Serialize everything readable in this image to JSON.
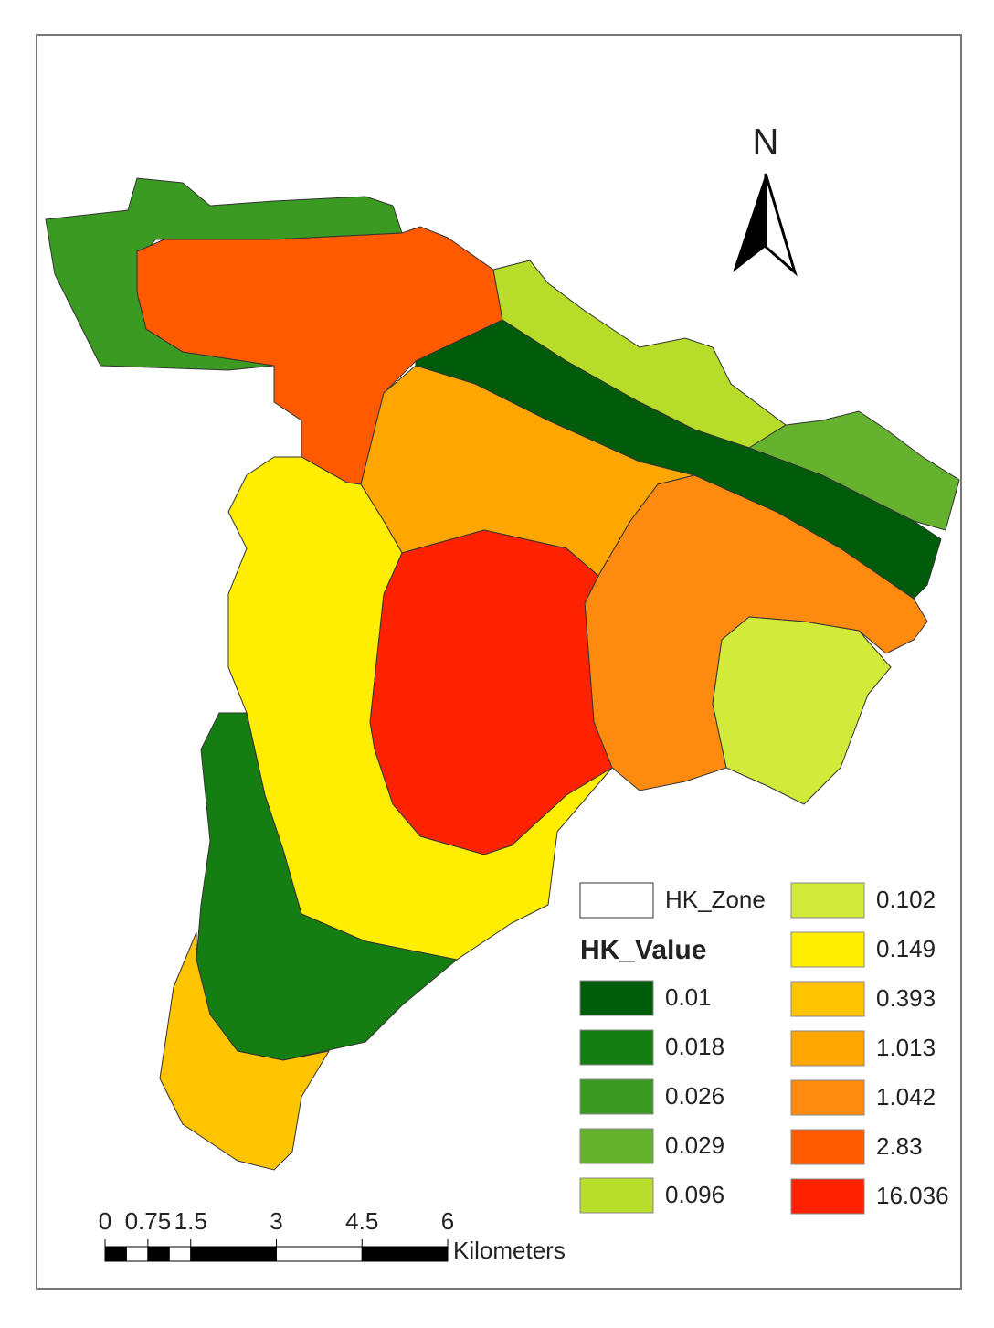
{
  "north": "N",
  "legend": {
    "zone_label": "HK_Zone",
    "title": "HK_Value",
    "items": [
      {
        "label": "0.01",
        "color": "#005c0a"
      },
      {
        "label": "0.018",
        "color": "#157e12"
      },
      {
        "label": "0.026",
        "color": "#3a9a22"
      },
      {
        "label": "0.029",
        "color": "#64b22e"
      },
      {
        "label": "0.096",
        "color": "#b7dc2a"
      },
      {
        "label": "0.102",
        "color": "#d2ea3a"
      },
      {
        "label": "0.149",
        "color": "#ffee00"
      },
      {
        "label": "0.393",
        "color": "#ffc400"
      },
      {
        "label": "1.013",
        "color": "#ffa600"
      },
      {
        "label": "1.042",
        "color": "#ff8a10"
      },
      {
        "label": "2.83",
        "color": "#ff5a00"
      },
      {
        "label": "16.036",
        "color": "#ff2200"
      }
    ]
  },
  "scale": {
    "ticks": [
      0,
      0.75,
      1.5,
      3,
      4.5,
      6
    ],
    "unit": "Kilometers"
  }
}
